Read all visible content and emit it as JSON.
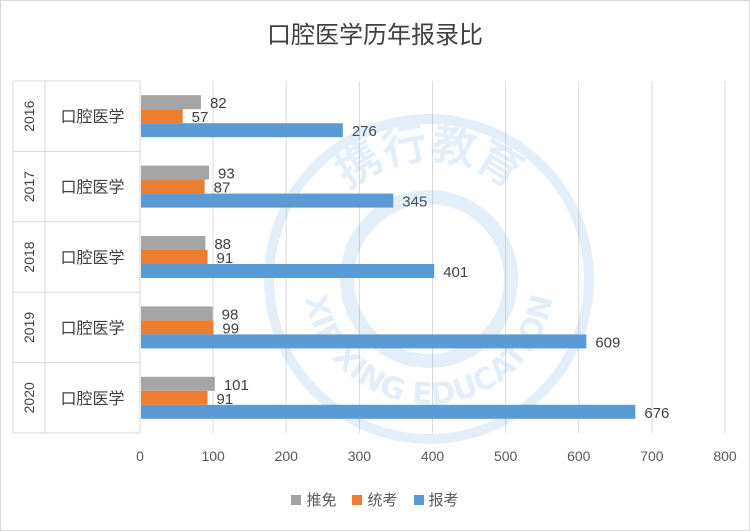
{
  "chart_data": {
    "type": "bar",
    "orientation": "horizontal",
    "title": "口腔医学历年报录比",
    "categories": [
      {
        "year": "2016",
        "name": "口腔医学"
      },
      {
        "year": "2017",
        "name": "口腔医学"
      },
      {
        "year": "2018",
        "name": "口腔医学"
      },
      {
        "year": "2019",
        "name": "口腔医学"
      },
      {
        "year": "2020",
        "name": "口腔医学"
      }
    ],
    "series": [
      {
        "name": "推免",
        "color": "#a5a5a5",
        "values": [
          82,
          93,
          88,
          98,
          101
        ]
      },
      {
        "name": "统考",
        "color": "#ed7d31",
        "values": [
          57,
          87,
          91,
          99,
          91
        ]
      },
      {
        "name": "报考",
        "color": "#5b9bd5",
        "values": [
          276,
          345,
          401,
          609,
          676
        ]
      }
    ],
    "xlim": [
      0,
      800
    ],
    "xticks": [
      "0",
      "100",
      "200",
      "300",
      "400",
      "500",
      "600",
      "700",
      "800"
    ],
    "grid": true,
    "legend_position": "bottom",
    "data_labels": true
  },
  "watermark": {
    "text_top": "携行教育",
    "text_bottom": "XIE XING EDUCATION"
  }
}
